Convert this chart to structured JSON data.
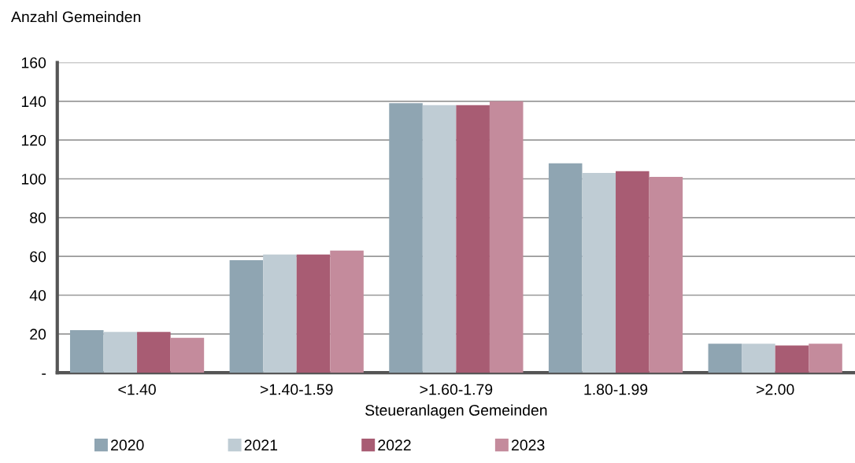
{
  "chart_data": {
    "type": "bar",
    "xlabel": "Steueranlagen Gemeinden",
    "ylabel": "Anzahl Gemeinden",
    "categories": [
      "<1.40",
      ">1.40-1.59",
      ">1.60-1.79",
      "1.80-1.99",
      ">2.00"
    ],
    "series": [
      {
        "name": "2020",
        "color": "#8fa5b2",
        "values": [
          22,
          58,
          139,
          108,
          15
        ]
      },
      {
        "name": "2021",
        "color": "#bfccd4",
        "values": [
          21,
          61,
          138,
          103,
          15
        ]
      },
      {
        "name": "2022",
        "color": "#a85c73",
        "values": [
          21,
          61,
          138,
          104,
          14
        ]
      },
      {
        "name": "2023",
        "color": "#c48b9c",
        "values": [
          18,
          63,
          140,
          101,
          15
        ]
      }
    ],
    "ylim": [
      0,
      160
    ],
    "yticks": [
      {
        "value": 0,
        "label": "-"
      },
      20,
      40,
      60,
      80,
      100,
      120,
      140,
      160
    ],
    "grid": "y",
    "legend": "bottom"
  }
}
